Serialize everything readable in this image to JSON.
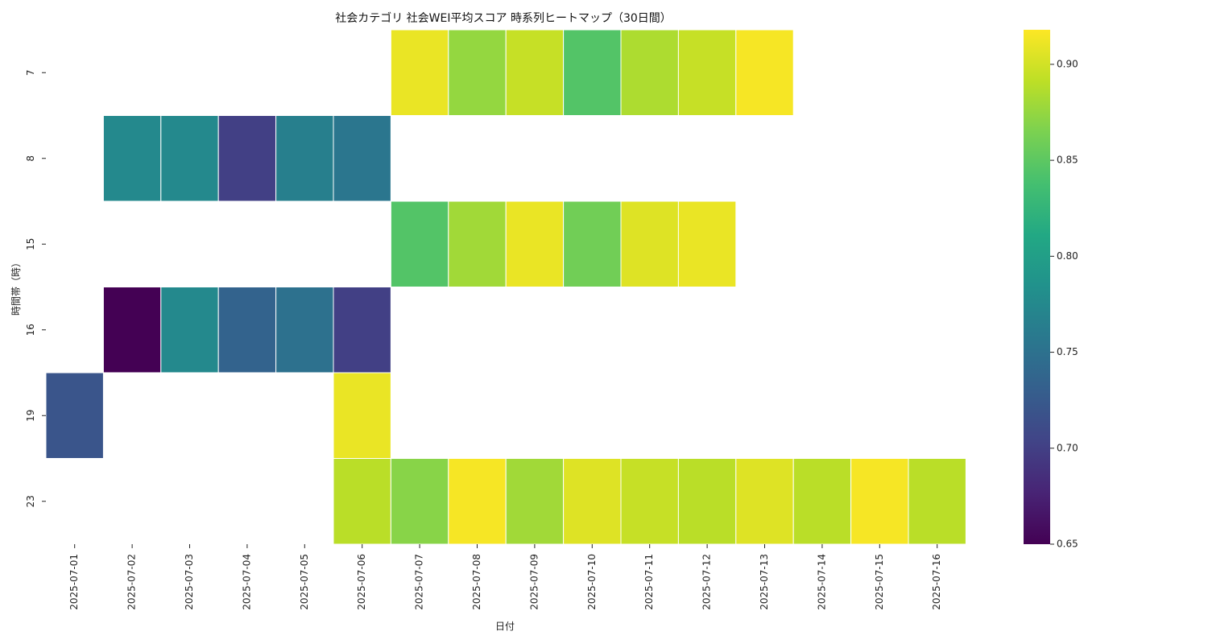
{
  "chart_data": {
    "type": "heatmap",
    "title": "社会カテゴリ 社会WEI平均スコア 時系列ヒートマップ（30日間）",
    "xlabel": "日付",
    "ylabel": "時間帯（時）",
    "x": [
      "2025-07-01",
      "2025-07-02",
      "2025-07-03",
      "2025-07-04",
      "2025-07-05",
      "2025-07-06",
      "2025-07-07",
      "2025-07-08",
      "2025-07-09",
      "2025-07-10",
      "2025-07-11",
      "2025-07-12",
      "2025-07-13",
      "2025-07-14",
      "2025-07-15",
      "2025-07-16"
    ],
    "y": [
      "7",
      "8",
      "15",
      "16",
      "19",
      "23"
    ],
    "values": [
      [
        null,
        null,
        null,
        null,
        null,
        null,
        0.91,
        0.875,
        0.895,
        0.845,
        0.885,
        0.895,
        0.915,
        null,
        null,
        null
      ],
      [
        null,
        0.775,
        0.775,
        0.7,
        0.765,
        0.755,
        null,
        null,
        null,
        null,
        null,
        null,
        null,
        null,
        null,
        null
      ],
      [
        null,
        null,
        null,
        null,
        null,
        null,
        0.845,
        0.88,
        0.91,
        0.86,
        0.905,
        0.91,
        null,
        null,
        null,
        null
      ],
      [
        null,
        0.65,
        0.775,
        0.735,
        0.75,
        0.7,
        null,
        null,
        null,
        null,
        null,
        null,
        null,
        null,
        null,
        null
      ],
      [
        0.72,
        null,
        null,
        null,
        null,
        0.91,
        null,
        null,
        null,
        null,
        null,
        null,
        null,
        null,
        null,
        null
      ],
      [
        null,
        null,
        null,
        null,
        null,
        0.89,
        0.87,
        0.915,
        0.88,
        0.905,
        0.895,
        0.89,
        0.905,
        0.89,
        0.915,
        0.89
      ]
    ],
    "colorbar": {
      "min": 0.65,
      "max": 0.918,
      "ticks": [
        "0.65",
        "0.70",
        "0.75",
        "0.80",
        "0.85",
        "0.90"
      ],
      "colormap": "viridis"
    },
    "grid": false,
    "cell_border_color": "#ffffff"
  }
}
